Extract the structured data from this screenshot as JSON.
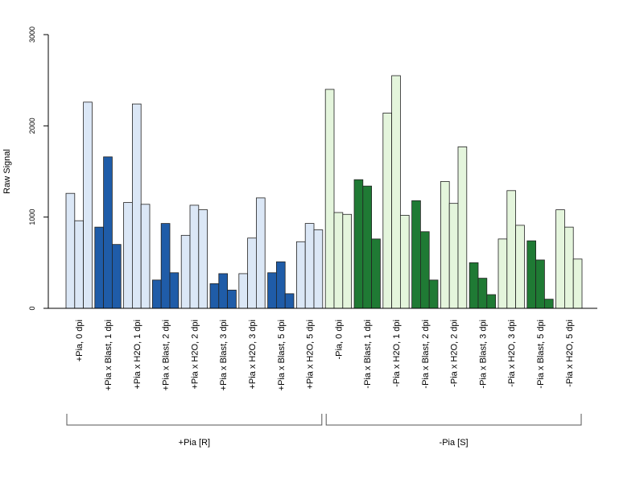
{
  "chart_data": {
    "type": "bar",
    "ylabel": "Raw Signal",
    "xlabel": "",
    "title": "",
    "ylim": [
      0,
      3000
    ],
    "yticks": [
      0,
      1000,
      2000,
      3000
    ],
    "grid": false,
    "categories": [
      "+Pia, 0 dpi",
      "+Pia x Blast, 1 dpi",
      "+Pia x H2O, 1 dpi",
      "+Pia x Blast, 2 dpi",
      "+Pia x H2O, 2 dpi",
      "+Pia x Blast, 3 dpi",
      "+Pia x H2O, 3 dpi",
      "+Pia x Blast, 5 dpi",
      "+Pia x H2O, 5 dpi",
      "-Pia, 0 dpi",
      "-Pia x Blast, 1 dpi",
      "-Pia x H2O, 1 dpi",
      "-Pia x Blast, 2 dpi",
      "-Pia x H2O, 2 dpi",
      "-Pia x Blast, 3 dpi",
      "-Pia x H2O, 3 dpi",
      "-Pia x Blast, 5 dpi",
      "-Pia x H2O, 5 dpi"
    ],
    "replicates": [
      [
        1260,
        960,
        2260
      ],
      [
        890,
        1660,
        700
      ],
      [
        1160,
        2240,
        1140
      ],
      [
        310,
        930,
        390
      ],
      [
        800,
        1130,
        1080
      ],
      [
        270,
        380,
        200
      ],
      [
        380,
        770,
        1210
      ],
      [
        390,
        510,
        160
      ],
      [
        730,
        930,
        860
      ],
      [
        2400,
        1050,
        1030
      ],
      [
        1410,
        1340,
        760
      ],
      [
        2140,
        2550,
        1020
      ],
      [
        1180,
        840,
        310
      ],
      [
        1390,
        1150,
        1770
      ],
      [
        500,
        330,
        150
      ],
      [
        760,
        1290,
        910
      ],
      [
        740,
        530,
        100
      ],
      [
        1080,
        890,
        540
      ]
    ],
    "category_colors": [
      "#dbe7f6",
      "#1f5ca8",
      "#dbe7f6",
      "#1f5ca8",
      "#dbe7f6",
      "#1f5ca8",
      "#dbe7f6",
      "#1f5ca8",
      "#dbe7f6",
      "#e4f5dc",
      "#1f7a34",
      "#e4f5dc",
      "#1f7a34",
      "#e4f5dc",
      "#1f7a34",
      "#e4f5dc",
      "#1f7a34",
      "#e4f5dc"
    ],
    "groups": [
      {
        "label": "+Pia [R]",
        "start": 0,
        "end": 8
      },
      {
        "label": "-Pia [S]",
        "start": 9,
        "end": 17
      }
    ]
  }
}
